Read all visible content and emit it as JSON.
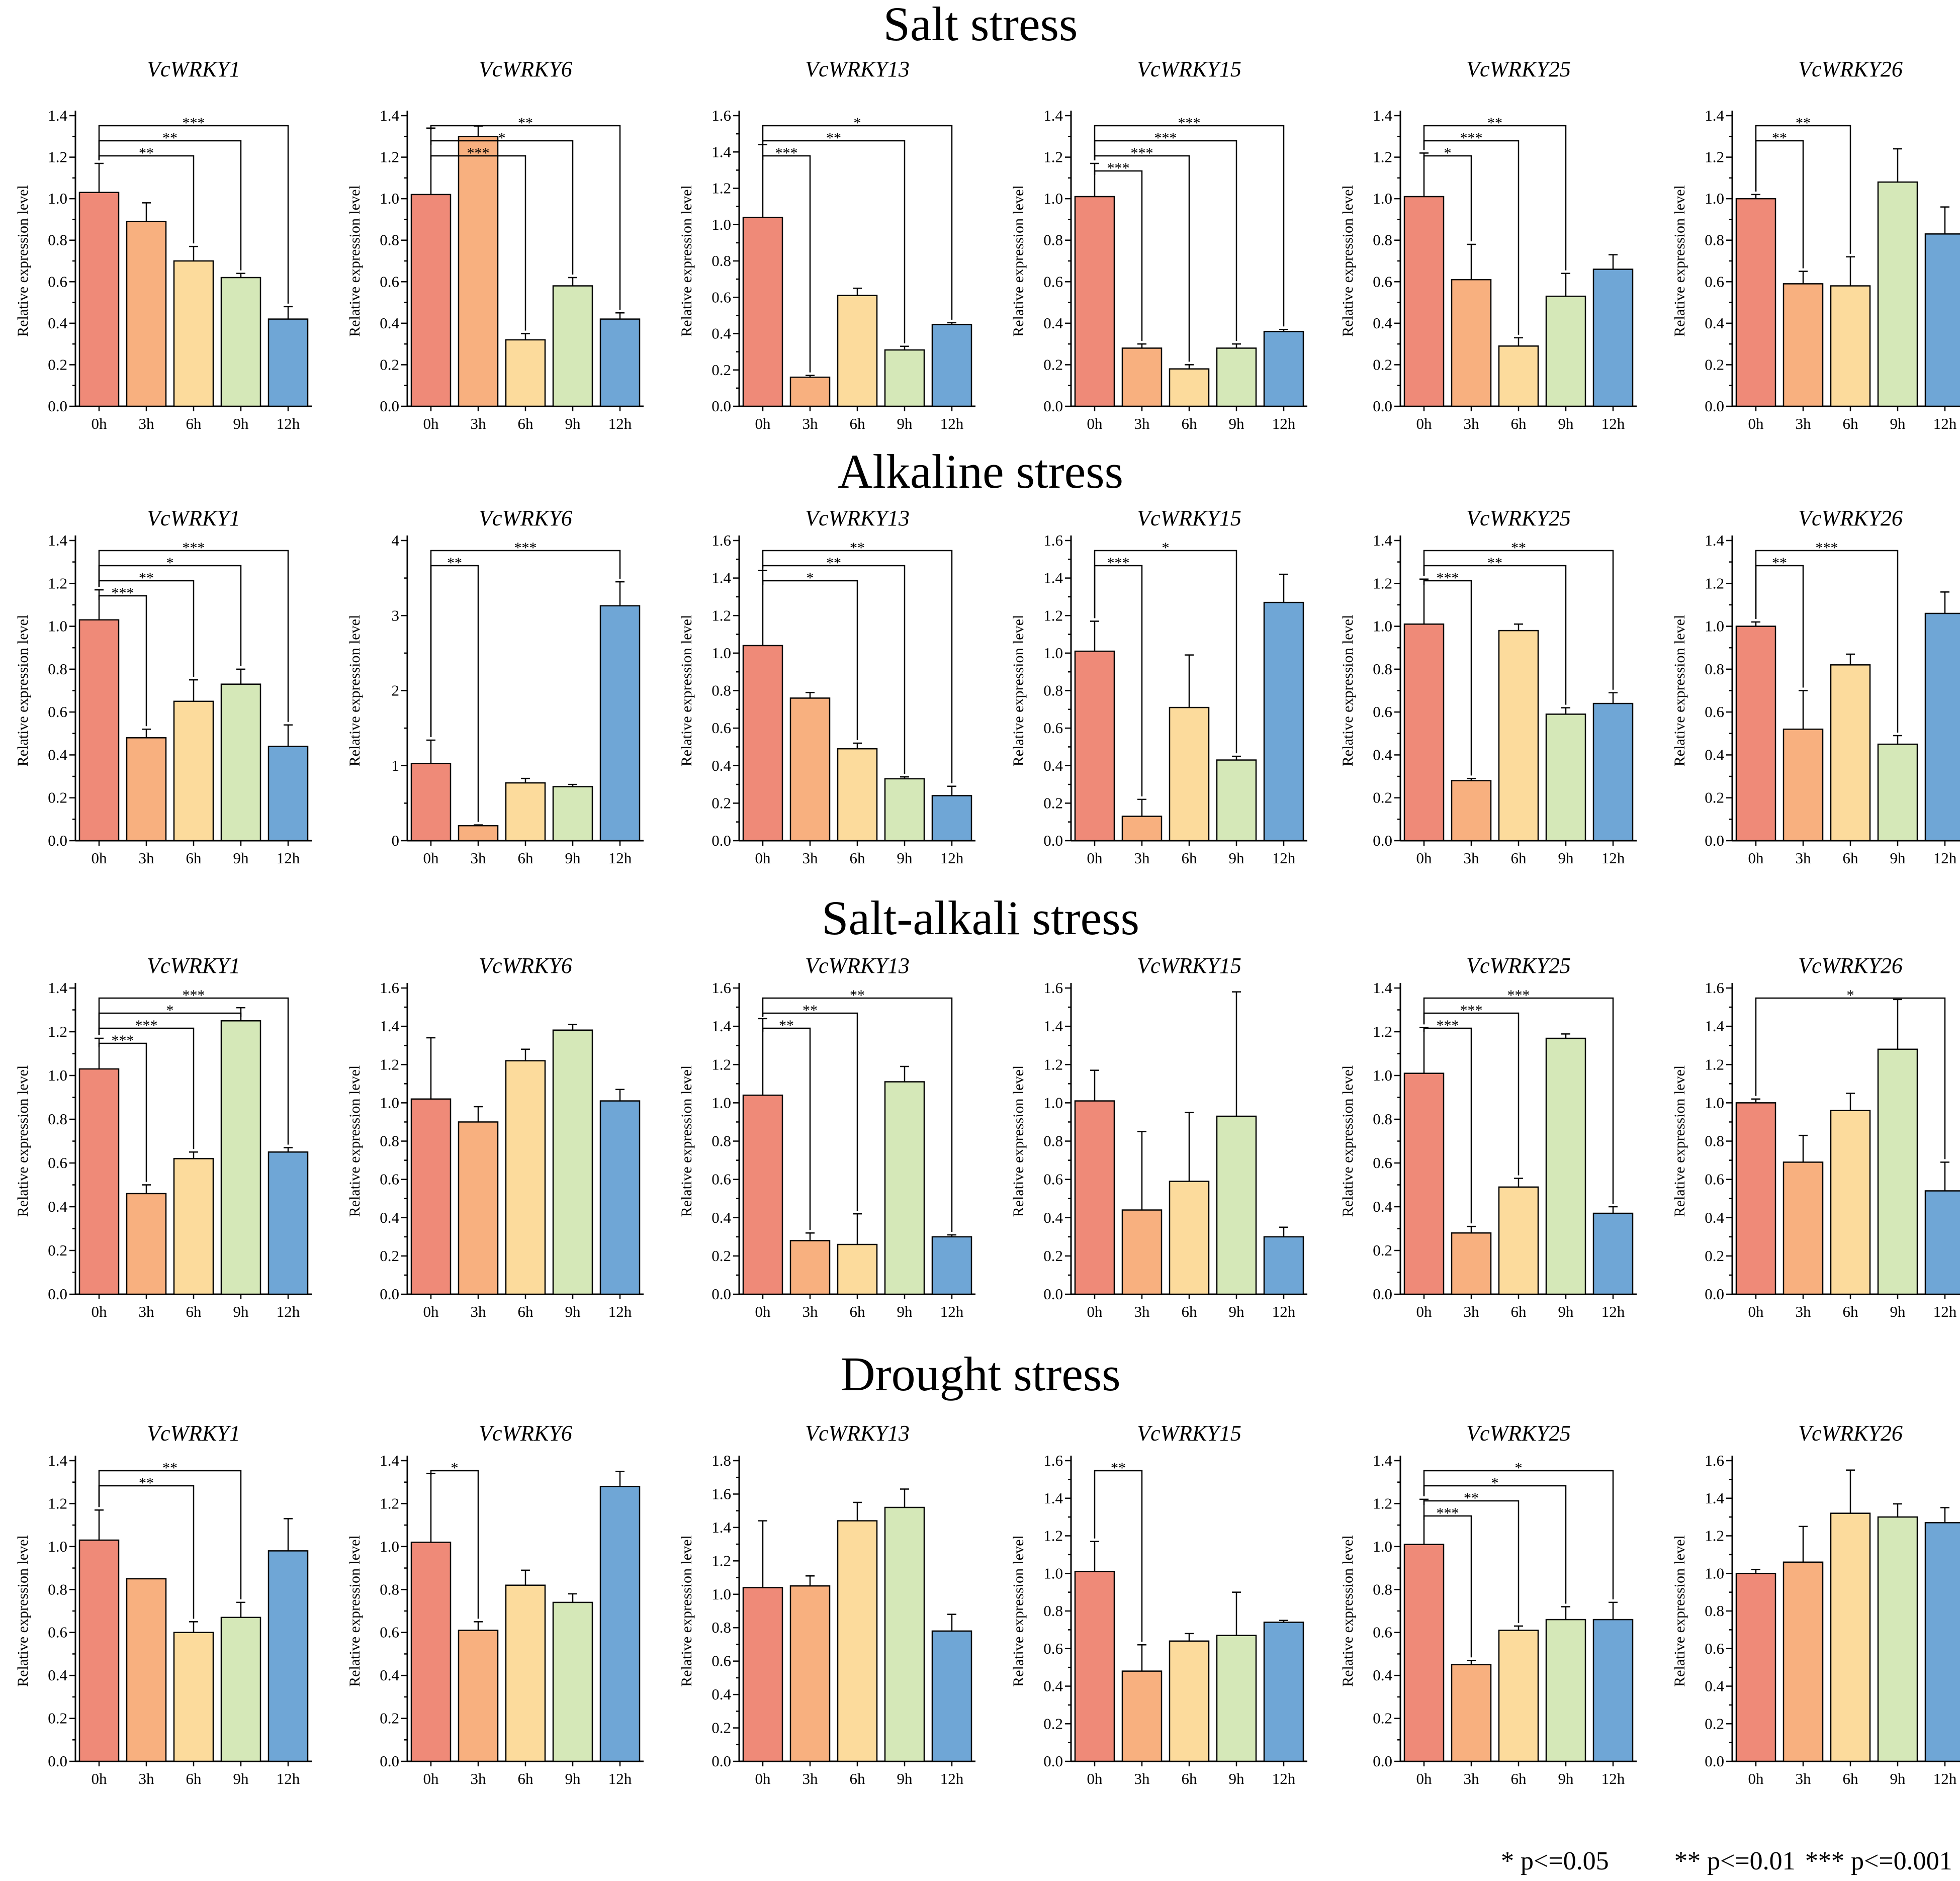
{
  "figure": {
    "colors": [
      "#EF8A78",
      "#F8B07F",
      "#FCDB9C",
      "#D5E8B8",
      "#6FA6D6"
    ],
    "categories": [
      "0h",
      "3h",
      "6h",
      "9h",
      "12h"
    ],
    "ylabel": "Relative expression level",
    "legend": [
      "* p<=0.05",
      "** p<=0.01",
      "*** p<=0.001"
    ]
  },
  "chart_data": [
    {
      "section": "Salt stress",
      "charts": [
        {
          "type": "bar",
          "title": "VcWRKY1",
          "ylim": [
            0,
            1.4
          ],
          "ticks": [
            0,
            0.2,
            0.4,
            0.6,
            0.8,
            1.0,
            1.2,
            1.4
          ],
          "values": [
            1.03,
            0.89,
            0.7,
            0.62,
            0.42
          ],
          "errors": [
            0.14,
            0.09,
            0.07,
            0.02,
            0.06
          ],
          "sig": [
            {
              "to": "6h",
              "label": "**"
            },
            {
              "to": "9h",
              "label": "**"
            },
            {
              "to": "12h",
              "label": "***"
            }
          ]
        },
        {
          "type": "bar",
          "title": "VcWRKY6",
          "ylim": [
            0,
            1.4
          ],
          "ticks": [
            0,
            0.2,
            0.4,
            0.6,
            0.8,
            1.0,
            1.2,
            1.4
          ],
          "values": [
            1.02,
            1.3,
            0.32,
            0.58,
            0.42
          ],
          "errors": [
            0.32,
            0.05,
            0.03,
            0.04,
            0.03
          ],
          "sig": [
            {
              "to": "6h",
              "label": "***"
            },
            {
              "to": "9h",
              "label": "*"
            },
            {
              "to": "12h",
              "label": "**"
            }
          ]
        },
        {
          "type": "bar",
          "title": "VcWRKY13",
          "ylim": [
            0,
            1.6
          ],
          "ticks": [
            0,
            0.2,
            0.4,
            0.6,
            0.8,
            1.0,
            1.2,
            1.4,
            1.6
          ],
          "values": [
            1.04,
            0.16,
            0.61,
            0.31,
            0.45
          ],
          "errors": [
            0.4,
            0.01,
            0.04,
            0.02,
            0.01
          ],
          "sig": [
            {
              "to": "3h",
              "label": "***"
            },
            {
              "to": "9h",
              "label": "**"
            },
            {
              "to": "12h",
              "label": "*"
            }
          ]
        },
        {
          "type": "bar",
          "title": "VcWRKY15",
          "ylim": [
            0,
            1.4
          ],
          "ticks": [
            0,
            0.2,
            0.4,
            0.6,
            0.8,
            1.0,
            1.2,
            1.4
          ],
          "values": [
            1.01,
            0.28,
            0.18,
            0.28,
            0.36
          ],
          "errors": [
            0.16,
            0.02,
            0.02,
            0.02,
            0.01
          ],
          "sig": [
            {
              "to": "3h",
              "label": "***"
            },
            {
              "to": "6h",
              "label": "***"
            },
            {
              "to": "9h",
              "label": "***"
            },
            {
              "to": "12h",
              "label": "***"
            }
          ]
        },
        {
          "type": "bar",
          "title": "VcWRKY25",
          "ylim": [
            0,
            1.4
          ],
          "ticks": [
            0,
            0.2,
            0.4,
            0.6,
            0.8,
            1.0,
            1.2,
            1.4
          ],
          "values": [
            1.01,
            0.61,
            0.29,
            0.53,
            0.66
          ],
          "errors": [
            0.21,
            0.17,
            0.04,
            0.11,
            0.07
          ],
          "sig": [
            {
              "to": "3h",
              "label": "*"
            },
            {
              "to": "6h",
              "label": "***"
            },
            {
              "to": "9h",
              "label": "**"
            }
          ]
        },
        {
          "type": "bar",
          "title": "VcWRKY26",
          "ylim": [
            0,
            1.4
          ],
          "ticks": [
            0,
            0.2,
            0.4,
            0.6,
            0.8,
            1.0,
            1.2,
            1.4
          ],
          "values": [
            1.0,
            0.59,
            0.58,
            1.08,
            0.83
          ],
          "errors": [
            0.02,
            0.06,
            0.14,
            0.16,
            0.13
          ],
          "sig": [
            {
              "to": "3h",
              "label": "**"
            },
            {
              "to": "6h",
              "label": "**"
            }
          ]
        }
      ]
    },
    {
      "section": "Alkaline stress",
      "charts": [
        {
          "type": "bar",
          "title": "VcWRKY1",
          "ylim": [
            0,
            1.4
          ],
          "ticks": [
            0,
            0.2,
            0.4,
            0.6,
            0.8,
            1.0,
            1.2,
            1.4
          ],
          "values": [
            1.03,
            0.48,
            0.65,
            0.73,
            0.44
          ],
          "errors": [
            0.14,
            0.04,
            0.1,
            0.07,
            0.1
          ],
          "sig": [
            {
              "to": "3h",
              "label": "***"
            },
            {
              "to": "6h",
              "label": "**"
            },
            {
              "to": "9h",
              "label": "*"
            },
            {
              "to": "12h",
              "label": "***"
            }
          ]
        },
        {
          "type": "bar",
          "title": "VcWRKY6",
          "ylim": [
            0,
            4
          ],
          "ticks": [
            0,
            1,
            2,
            3,
            4
          ],
          "values": [
            1.03,
            0.2,
            0.77,
            0.72,
            3.13
          ],
          "errors": [
            0.31,
            0.01,
            0.06,
            0.03,
            0.32
          ],
          "sig": [
            {
              "to": "3h",
              "label": "**"
            },
            {
              "to": "12h",
              "label": "***"
            }
          ]
        },
        {
          "type": "bar",
          "title": "VcWRKY13",
          "ylim": [
            0,
            1.6
          ],
          "ticks": [
            0,
            0.2,
            0.4,
            0.6,
            0.8,
            1.0,
            1.2,
            1.4,
            1.6
          ],
          "values": [
            1.04,
            0.76,
            0.49,
            0.33,
            0.24
          ],
          "errors": [
            0.4,
            0.03,
            0.03,
            0.01,
            0.05
          ],
          "sig": [
            {
              "to": "6h",
              "label": "*"
            },
            {
              "to": "9h",
              "label": "**"
            },
            {
              "to": "12h",
              "label": "**"
            }
          ]
        },
        {
          "type": "bar",
          "title": "VcWRKY15",
          "ylim": [
            0,
            1.6
          ],
          "ticks": [
            0,
            0.2,
            0.4,
            0.6,
            0.8,
            1.0,
            1.2,
            1.4,
            1.6
          ],
          "values": [
            1.01,
            0.13,
            0.71,
            0.43,
            1.27
          ],
          "errors": [
            0.16,
            0.09,
            0.28,
            0.02,
            0.15
          ],
          "sig": [
            {
              "to": "3h",
              "label": "***"
            },
            {
              "to": "9h",
              "label": "*"
            }
          ]
        },
        {
          "type": "bar",
          "title": "VcWRKY25",
          "ylim": [
            0,
            1.4
          ],
          "ticks": [
            0,
            0.2,
            0.4,
            0.6,
            0.8,
            1.0,
            1.2,
            1.4
          ],
          "values": [
            1.01,
            0.28,
            0.98,
            0.59,
            0.64
          ],
          "errors": [
            0.21,
            0.01,
            0.03,
            0.03,
            0.05
          ],
          "sig": [
            {
              "to": "3h",
              "label": "***"
            },
            {
              "to": "9h",
              "label": "**"
            },
            {
              "to": "12h",
              "label": "**"
            }
          ]
        },
        {
          "type": "bar",
          "title": "VcWRKY26",
          "ylim": [
            0,
            1.4
          ],
          "ticks": [
            0,
            0.2,
            0.4,
            0.6,
            0.8,
            1.0,
            1.2,
            1.4
          ],
          "values": [
            1.0,
            0.52,
            0.82,
            0.45,
            1.06
          ],
          "errors": [
            0.02,
            0.18,
            0.05,
            0.04,
            0.1
          ],
          "sig": [
            {
              "to": "3h",
              "label": "**"
            },
            {
              "to": "9h",
              "label": "***"
            }
          ]
        }
      ]
    },
    {
      "section": "Salt-alkali stress",
      "charts": [
        {
          "type": "bar",
          "title": "VcWRKY1",
          "ylim": [
            0,
            1.4
          ],
          "ticks": [
            0,
            0.2,
            0.4,
            0.6,
            0.8,
            1.0,
            1.2,
            1.4
          ],
          "values": [
            1.03,
            0.46,
            0.62,
            1.25,
            0.65
          ],
          "errors": [
            0.14,
            0.04,
            0.03,
            0.06,
            0.02
          ],
          "sig": [
            {
              "to": "3h",
              "label": "***"
            },
            {
              "to": "6h",
              "label": "***"
            },
            {
              "to": "9h",
              "label": "*"
            },
            {
              "to": "12h",
              "label": "***"
            }
          ]
        },
        {
          "type": "bar",
          "title": "VcWRKY6",
          "ylim": [
            0,
            1.6
          ],
          "ticks": [
            0,
            0.2,
            0.4,
            0.6,
            0.8,
            1.0,
            1.2,
            1.4,
            1.6
          ],
          "values": [
            1.02,
            0.9,
            1.22,
            1.38,
            1.01
          ],
          "errors": [
            0.32,
            0.08,
            0.06,
            0.03,
            0.06
          ],
          "sig": []
        },
        {
          "type": "bar",
          "title": "VcWRKY13",
          "ylim": [
            0,
            1.6
          ],
          "ticks": [
            0,
            0.2,
            0.4,
            0.6,
            0.8,
            1.0,
            1.2,
            1.4,
            1.6
          ],
          "values": [
            1.04,
            0.28,
            0.26,
            1.11,
            0.3
          ],
          "errors": [
            0.4,
            0.04,
            0.16,
            0.08,
            0.01
          ],
          "sig": [
            {
              "to": "3h",
              "label": "**"
            },
            {
              "to": "6h",
              "label": "**"
            },
            {
              "to": "12h",
              "label": "**"
            }
          ]
        },
        {
          "type": "bar",
          "title": "VcWRKY15",
          "ylim": [
            0,
            1.6
          ],
          "ticks": [
            0,
            0.2,
            0.4,
            0.6,
            0.8,
            1.0,
            1.2,
            1.4,
            1.6
          ],
          "values": [
            1.01,
            0.44,
            0.59,
            0.93,
            0.3
          ],
          "errors": [
            0.16,
            0.41,
            0.36,
            0.65,
            0.05
          ],
          "sig": []
        },
        {
          "type": "bar",
          "title": "VcWRKY25",
          "ylim": [
            0,
            1.4
          ],
          "ticks": [
            0,
            0.2,
            0.4,
            0.6,
            0.8,
            1.0,
            1.2,
            1.4
          ],
          "values": [
            1.01,
            0.28,
            0.49,
            1.17,
            0.37
          ],
          "errors": [
            0.21,
            0.03,
            0.04,
            0.02,
            0.03
          ],
          "sig": [
            {
              "to": "3h",
              "label": "***"
            },
            {
              "to": "6h",
              "label": "***"
            },
            {
              "to": "12h",
              "label": "***"
            }
          ]
        },
        {
          "type": "bar",
          "title": "VcWRKY26",
          "ylim": [
            0,
            1.6
          ],
          "ticks": [
            0,
            0.2,
            0.4,
            0.6,
            0.8,
            1.0,
            1.2,
            1.4,
            1.6
          ],
          "values": [
            1.0,
            0.69,
            0.96,
            1.28,
            0.54
          ],
          "errors": [
            0.02,
            0.14,
            0.09,
            0.26,
            0.15
          ],
          "sig": [
            {
              "to": "12h",
              "label": "*"
            }
          ]
        }
      ]
    },
    {
      "section": "Drought stress",
      "charts": [
        {
          "type": "bar",
          "title": "VcWRKY1",
          "ylim": [
            0,
            1.4
          ],
          "ticks": [
            0,
            0.2,
            0.4,
            0.6,
            0.8,
            1.0,
            1.2,
            1.4
          ],
          "values": [
            1.03,
            0.85,
            0.6,
            0.67,
            0.98
          ],
          "errors": [
            0.14,
            0.0,
            0.05,
            0.07,
            0.15
          ],
          "sig": [
            {
              "to": "6h",
              "label": "**"
            },
            {
              "to": "9h",
              "label": "**"
            }
          ]
        },
        {
          "type": "bar",
          "title": "VcWRKY6",
          "ylim": [
            0,
            1.4
          ],
          "ticks": [
            0,
            0.2,
            0.4,
            0.6,
            0.8,
            1.0,
            1.2,
            1.4
          ],
          "values": [
            1.02,
            0.61,
            0.82,
            0.74,
            1.28
          ],
          "errors": [
            0.32,
            0.04,
            0.07,
            0.04,
            0.07
          ],
          "sig": [
            {
              "to": "3h",
              "label": "*"
            }
          ]
        },
        {
          "type": "bar",
          "title": "VcWRKY13",
          "ylim": [
            0,
            1.8
          ],
          "ticks": [
            0,
            0.2,
            0.4,
            0.6,
            0.8,
            1.0,
            1.2,
            1.4,
            1.6,
            1.8
          ],
          "values": [
            1.04,
            1.05,
            1.44,
            1.52,
            0.78
          ],
          "errors": [
            0.4,
            0.06,
            0.11,
            0.11,
            0.1
          ],
          "sig": []
        },
        {
          "type": "bar",
          "title": "VcWRKY15",
          "ylim": [
            0,
            1.6
          ],
          "ticks": [
            0,
            0.2,
            0.4,
            0.6,
            0.8,
            1.0,
            1.2,
            1.4,
            1.6
          ],
          "values": [
            1.01,
            0.48,
            0.64,
            0.67,
            0.74
          ],
          "errors": [
            0.16,
            0.14,
            0.04,
            0.23,
            0.01
          ],
          "sig": [
            {
              "to": "3h",
              "label": "**"
            }
          ]
        },
        {
          "type": "bar",
          "title": "VcWRKY25",
          "ylim": [
            0,
            1.4
          ],
          "ticks": [
            0,
            0.2,
            0.4,
            0.6,
            0.8,
            1.0,
            1.2,
            1.4
          ],
          "values": [
            1.01,
            0.45,
            0.61,
            0.66,
            0.66
          ],
          "errors": [
            0.21,
            0.02,
            0.02,
            0.06,
            0.08
          ],
          "sig": [
            {
              "to": "3h",
              "label": "***"
            },
            {
              "to": "6h",
              "label": "**"
            },
            {
              "to": "9h",
              "label": "*"
            },
            {
              "to": "12h",
              "label": "*"
            }
          ]
        },
        {
          "type": "bar",
          "title": "VcWRKY26",
          "ylim": [
            0,
            1.6
          ],
          "ticks": [
            0,
            0.2,
            0.4,
            0.6,
            0.8,
            1.0,
            1.2,
            1.4,
            1.6
          ],
          "values": [
            1.0,
            1.06,
            1.32,
            1.3,
            1.27
          ],
          "errors": [
            0.02,
            0.19,
            0.23,
            0.07,
            0.08
          ],
          "sig": []
        }
      ]
    }
  ]
}
